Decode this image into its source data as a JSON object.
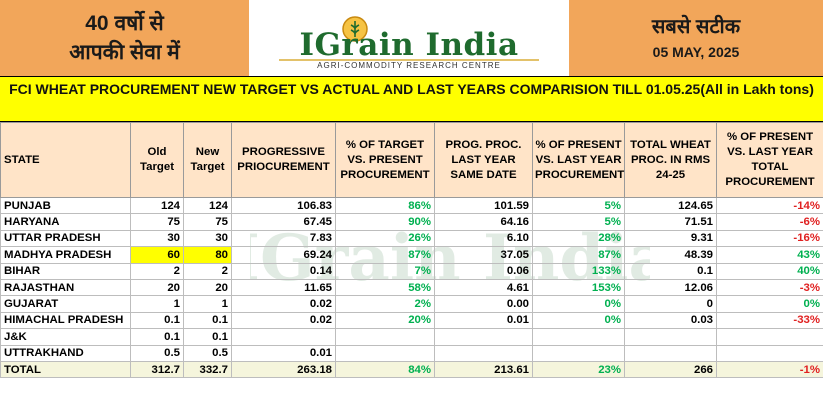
{
  "header": {
    "left_line1": "40 वर्षो से",
    "left_line2": "आपकी सेवा में",
    "logo_title": "IGrain India",
    "logo_subtitle": "AGRI-COMMODITY RESEARCH CENTRE",
    "right_line1": "सबसे सटीक",
    "date": "05 MAY, 2025"
  },
  "title": "FCI WHEAT PROCUREMENT NEW TARGET VS ACTUAL AND LAST YEARS COMPARISION TILL 01.05.25(All in Lakh tons)",
  "columns": [
    "STATE",
    "Old Target",
    "New Target",
    "PROGRESSIVE PRIOCUREMENT",
    "% OF TARGET VS. PRESENT PROCUREMENT",
    "PROG. PROC. LAST YEAR SAME DATE",
    "% OF PRESENT VS. LAST YEAR PROCUREMENT",
    "TOTAL WHEAT PROC. IN RMS 24-25",
    "% OF PRESENT VS. LAST YEAR TOTAL PROCUREMENT"
  ],
  "rows": [
    [
      "PUNJAB",
      "124",
      "124",
      "106.83",
      "86%",
      "101.59",
      "5%",
      "124.65",
      "-14%"
    ],
    [
      "HARYANA",
      "75",
      "75",
      "67.45",
      "90%",
      "64.16",
      "5%",
      "71.51",
      "-6%"
    ],
    [
      "UTTAR PRADESH",
      "30",
      "30",
      "7.83",
      "26%",
      "6.10",
      "28%",
      "9.31",
      "-16%"
    ],
    [
      "MADHYA PRADESH",
      "60",
      "80",
      "69.24",
      "87%",
      "37.05",
      "87%",
      "48.39",
      "43%"
    ],
    [
      "BIHAR",
      "2",
      "2",
      "0.14",
      "7%",
      "0.06",
      "133%",
      "0.1",
      "40%"
    ],
    [
      "RAJASTHAN",
      "20",
      "20",
      "11.65",
      "58%",
      "4.61",
      "153%",
      "12.06",
      "-3%"
    ],
    [
      "GUJARAT",
      "1",
      "1",
      "0.02",
      "2%",
      "0.00",
      "0%",
      "0",
      "0%"
    ],
    [
      "HIMACHAL PRADESH",
      "0.1",
      "0.1",
      "0.02",
      "20%",
      "0.01",
      "0%",
      "0.03",
      "-33%"
    ],
    [
      "J&K",
      "0.1",
      "0.1",
      "",
      "",
      "",
      "",
      "",
      ""
    ],
    [
      "UTTRAKHAND",
      "0.5",
      "0.5",
      "0.01",
      "",
      "",
      "",
      "",
      ""
    ]
  ],
  "total": [
    "TOTAL",
    "312.7",
    "332.7",
    "263.18",
    "84%",
    "213.61",
    "23%",
    "266",
    "-1%"
  ],
  "watermark": "IGrain India"
}
